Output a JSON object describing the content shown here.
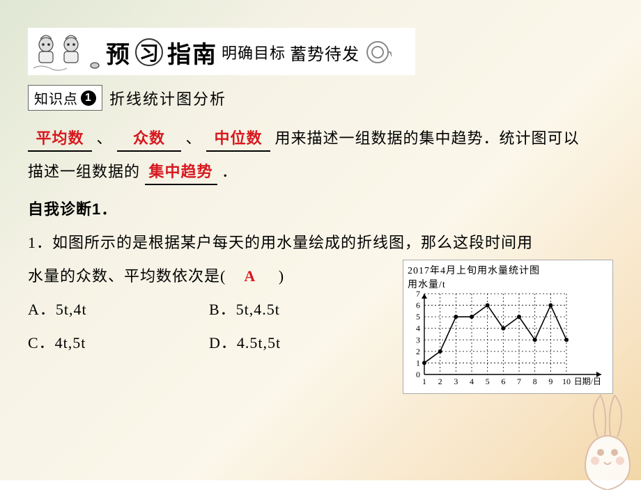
{
  "banner": {
    "pre_glyph": "预",
    "circle_glyph": "习",
    "post_glyphs": "指南",
    "sub1": "明确目标",
    "sub2": "蓄势待发",
    "sub2_script": true
  },
  "knowledge_point": {
    "label": "知识点",
    "num": "1",
    "title": "折线统计图分析"
  },
  "fill_in": {
    "blank1": "平均数",
    "blank2": "众数",
    "blank3": "中位数",
    "sep": "、",
    "line1_tail": "用来描述一组数据的集中趋势．统计图可以",
    "line2_head": "描述一组数据的",
    "blank4": "集中趋势",
    "line2_tail": "．"
  },
  "diagnosis_header": "自我诊断1．",
  "question": {
    "num": "1．",
    "stem_l1": "如图所示的是根据某户每天的用水量绘成的折线图，那么这段时间用",
    "stem_l2_head": "水量的众数、平均数依次是(",
    "stem_l2_tail": ")",
    "answer": "A",
    "options": {
      "A": "A．5t,4t",
      "B": "B．5t,4.5t",
      "C": "C．4t,5t",
      "D": "D．4.5t,5t"
    }
  },
  "chart": {
    "title": "2017年4月上旬用水量统计图",
    "y_label": "用水量/t",
    "x_label": "日期/日",
    "y_ticks": [
      0,
      1,
      2,
      3,
      4,
      5,
      6,
      7
    ],
    "x_ticks": [
      1,
      2,
      3,
      4,
      5,
      6,
      7,
      8,
      9,
      10
    ],
    "values": [
      1,
      2,
      5,
      5,
      6,
      4,
      5,
      3,
      6,
      3
    ],
    "grid_color": "#000000",
    "line_color": "#000000",
    "bg_color": "#ffffff",
    "axis_font_px": 12,
    "ylim": [
      0,
      7
    ],
    "xlim": [
      1,
      10
    ],
    "ytick_step": 1,
    "xtick_step": 1,
    "marker_radius": 3
  },
  "colors": {
    "answer_red": "#d6181f",
    "text_black": "#000000",
    "page_bg_start": "#e0e7d4",
    "page_bg_end": "#f2d7a8"
  }
}
